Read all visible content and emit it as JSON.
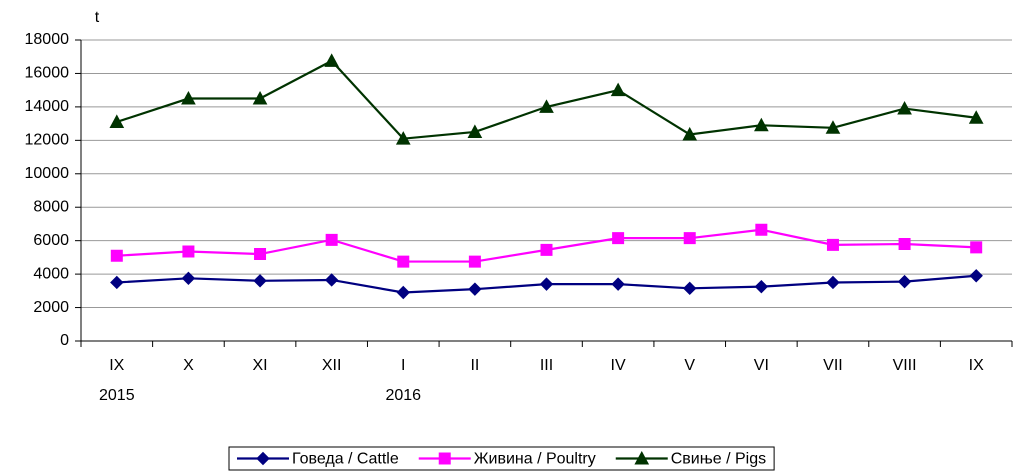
{
  "chart_data": {
    "type": "line",
    "y_label": "t",
    "categories": [
      "IX",
      "X",
      "XI",
      "XII",
      "I",
      "II",
      "III",
      "IV",
      "V",
      "VI",
      "VII",
      "VIII",
      "IX"
    ],
    "category_years": [
      "2015",
      null,
      null,
      null,
      "2016",
      null,
      null,
      null,
      null,
      null,
      null,
      null,
      null
    ],
    "ylim": [
      0,
      18000
    ],
    "yticks": [
      0,
      2000,
      4000,
      6000,
      8000,
      10000,
      12000,
      14000,
      16000,
      18000
    ],
    "grid": true,
    "legend": "bottom",
    "series": [
      {
        "name": "Говеда / Cattle",
        "color": "#000080",
        "marker": "diamond",
        "values": [
          3500,
          3750,
          3600,
          3650,
          2900,
          3100,
          3400,
          3400,
          3150,
          3250,
          3500,
          3550,
          3900
        ]
      },
      {
        "name": "Живина / Poultry",
        "color": "#ff00ff",
        "marker": "square",
        "values": [
          5100,
          5350,
          5200,
          6050,
          4750,
          4750,
          5450,
          6150,
          6150,
          6650,
          5750,
          5800,
          5600
        ]
      },
      {
        "name": "Свиње / Pigs",
        "color": "#003300",
        "marker": "triangle",
        "values": [
          13100,
          14500,
          14500,
          16750,
          12100,
          12500,
          14000,
          15000,
          12350,
          12900,
          12750,
          13900,
          13350
        ]
      }
    ]
  }
}
